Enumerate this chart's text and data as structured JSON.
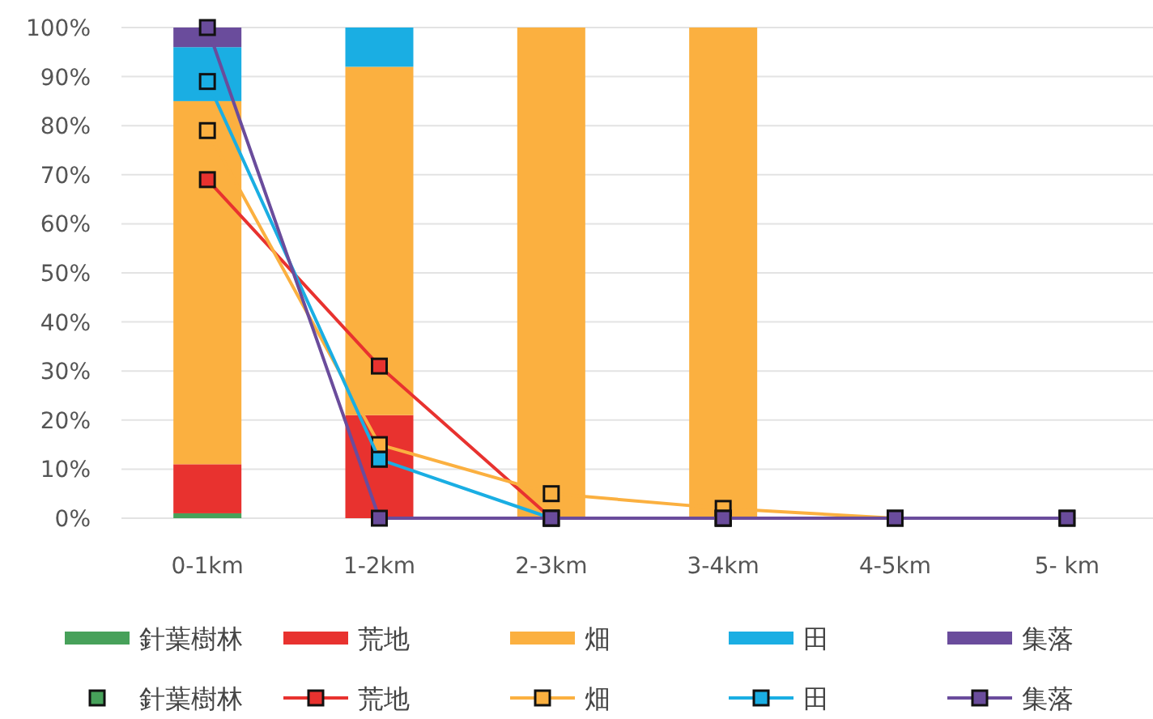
{
  "chart_data": {
    "type": "bar",
    "stacked": true,
    "categories": [
      "0-1km",
      "1-2km",
      "2-3km",
      "3-4km",
      "4-5km",
      "5- km"
    ],
    "ylim": [
      0,
      100
    ],
    "yticks": [
      {
        "value": 0,
        "label": "0%"
      },
      {
        "value": 10,
        "label": "10%"
      },
      {
        "value": 20,
        "label": "20%"
      },
      {
        "value": 30,
        "label": "30%"
      },
      {
        "value": 40,
        "label": "40%"
      },
      {
        "value": 50,
        "label": "50%"
      },
      {
        "value": 60,
        "label": "60%"
      },
      {
        "value": 70,
        "label": "70%"
      },
      {
        "value": 80,
        "label": "80%"
      },
      {
        "value": 90,
        "label": "90%"
      },
      {
        "value": 100,
        "label": "100%"
      }
    ],
    "grid": "y",
    "legend": "bottom",
    "marker": "square",
    "series": [
      {
        "name": "針葉樹林",
        "color": "#47a15a",
        "values": [
          1,
          0,
          0,
          0,
          0,
          0
        ]
      },
      {
        "name": "荒地",
        "color": "#e8322f",
        "values": [
          10,
          21,
          0,
          0,
          0,
          0
        ]
      },
      {
        "name": "畑",
        "color": "#fbb040",
        "values": [
          74,
          71,
          100,
          100,
          0,
          0
        ]
      },
      {
        "name": "田",
        "color": "#1aaee3",
        "values": [
          11,
          8,
          0,
          0,
          0,
          0
        ]
      },
      {
        "name": "集落",
        "color": "#6a4c9c",
        "values": [
          4,
          0,
          0,
          0,
          0,
          0
        ]
      },
      {
        "name": "針葉樹林",
        "type": "scatter",
        "color": "#47a15a",
        "values": [
          null,
          null,
          null,
          null,
          null,
          null
        ]
      },
      {
        "name": "荒地",
        "type": "line",
        "color": "#e8322f",
        "values": [
          69,
          31,
          0,
          0,
          null,
          null
        ]
      },
      {
        "name": "畑",
        "type": "line",
        "color": "#fbb040",
        "values": [
          79,
          15,
          5,
          2,
          0,
          0
        ]
      },
      {
        "name": "田",
        "type": "line",
        "color": "#1aaee3",
        "values": [
          89,
          12,
          0,
          0,
          null,
          null
        ]
      },
      {
        "name": "集落",
        "type": "line",
        "color": "#6a4c9c",
        "values": [
          100,
          0,
          0,
          0,
          0,
          0
        ]
      }
    ]
  }
}
